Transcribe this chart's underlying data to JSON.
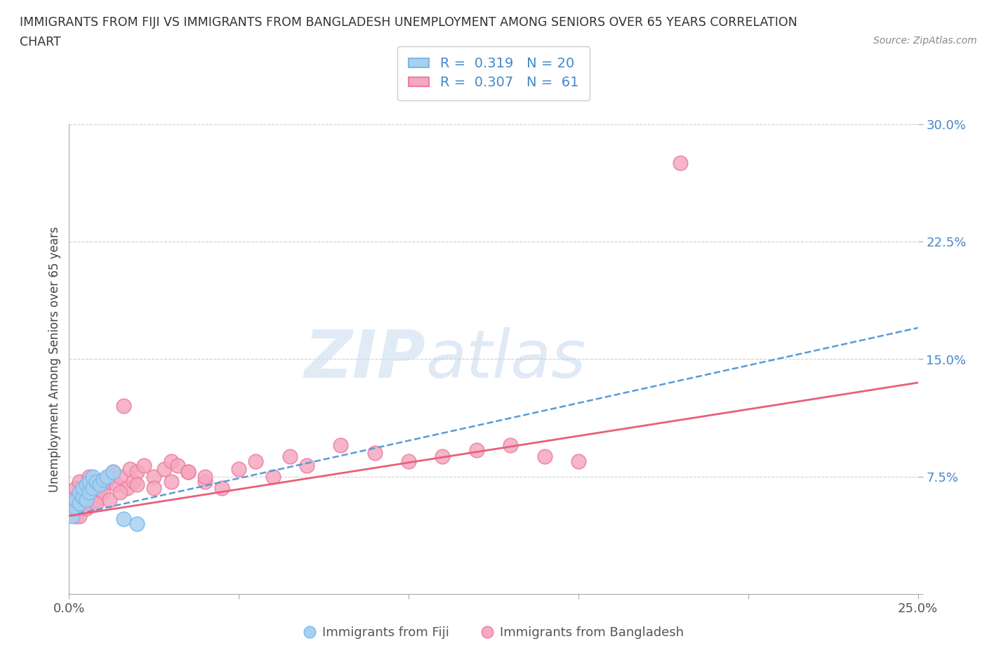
{
  "title_line1": "IMMIGRANTS FROM FIJI VS IMMIGRANTS FROM BANGLADESH UNEMPLOYMENT AMONG SENIORS OVER 65 YEARS CORRELATION",
  "title_line2": "CHART",
  "source": "Source: ZipAtlas.com",
  "ylabel": "Unemployment Among Seniors over 65 years",
  "xlim": [
    0.0,
    0.25
  ],
  "ylim": [
    0.0,
    0.3
  ],
  "xticks": [
    0.0,
    0.05,
    0.1,
    0.15,
    0.2,
    0.25
  ],
  "yticks": [
    0.0,
    0.075,
    0.15,
    0.225,
    0.3
  ],
  "fiji_color": "#A8D0F0",
  "fiji_edge_color": "#7ABAEC",
  "bangladesh_color": "#F5A8C0",
  "bangladesh_edge_color": "#EE7EA0",
  "fiji_R": 0.319,
  "fiji_N": 20,
  "bangladesh_R": 0.307,
  "bangladesh_N": 61,
  "fiji_trend_color": "#5B9BD5",
  "fiji_trend_style": "--",
  "bangladesh_trend_color": "#E8607A",
  "bangladesh_trend_style": "-",
  "watermark_zip": "ZIP",
  "watermark_atlas": "atlas",
  "legend_fiji": "Immigrants from Fiji",
  "legend_bangladesh": "Immigrants from Bangladesh",
  "fiji_x": [
    0.001,
    0.002,
    0.002,
    0.003,
    0.003,
    0.004,
    0.004,
    0.005,
    0.005,
    0.006,
    0.006,
    0.007,
    0.007,
    0.008,
    0.009,
    0.01,
    0.011,
    0.013,
    0.016,
    0.02
  ],
  "fiji_y": [
    0.05,
    0.055,
    0.06,
    0.058,
    0.065,
    0.062,
    0.068,
    0.06,
    0.07,
    0.065,
    0.072,
    0.068,
    0.075,
    0.072,
    0.07,
    0.073,
    0.075,
    0.078,
    0.048,
    0.045
  ],
  "bangladesh_x": [
    0.001,
    0.001,
    0.002,
    0.002,
    0.003,
    0.003,
    0.004,
    0.004,
    0.005,
    0.005,
    0.006,
    0.006,
    0.007,
    0.007,
    0.008,
    0.008,
    0.009,
    0.01,
    0.01,
    0.011,
    0.012,
    0.013,
    0.014,
    0.015,
    0.016,
    0.017,
    0.018,
    0.019,
    0.02,
    0.022,
    0.025,
    0.028,
    0.03,
    0.032,
    0.035,
    0.04,
    0.045,
    0.05,
    0.055,
    0.06,
    0.065,
    0.07,
    0.08,
    0.09,
    0.1,
    0.11,
    0.12,
    0.13,
    0.14,
    0.15,
    0.003,
    0.005,
    0.008,
    0.012,
    0.015,
    0.02,
    0.025,
    0.03,
    0.035,
    0.04,
    0.18
  ],
  "bangladesh_y": [
    0.06,
    0.055,
    0.068,
    0.05,
    0.072,
    0.058,
    0.065,
    0.06,
    0.068,
    0.062,
    0.075,
    0.058,
    0.07,
    0.065,
    0.072,
    0.06,
    0.068,
    0.07,
    0.065,
    0.072,
    0.075,
    0.078,
    0.07,
    0.075,
    0.12,
    0.068,
    0.08,
    0.072,
    0.078,
    0.082,
    0.075,
    0.08,
    0.085,
    0.082,
    0.078,
    0.072,
    0.068,
    0.08,
    0.085,
    0.075,
    0.088,
    0.082,
    0.095,
    0.09,
    0.085,
    0.088,
    0.092,
    0.095,
    0.088,
    0.085,
    0.05,
    0.055,
    0.058,
    0.06,
    0.065,
    0.07,
    0.068,
    0.072,
    0.078,
    0.075,
    0.275
  ],
  "fiji_trend_x0": 0.0,
  "fiji_trend_y0": 0.05,
  "fiji_trend_x1": 0.25,
  "fiji_trend_y1": 0.17,
  "bang_trend_x0": 0.0,
  "bang_trend_y0": 0.05,
  "bang_trend_x1": 0.25,
  "bang_trend_y1": 0.135
}
